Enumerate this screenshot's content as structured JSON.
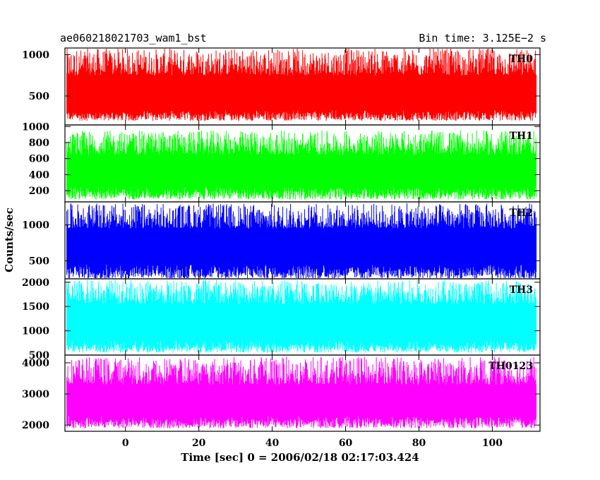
{
  "header": {
    "title_left": "ae060218021703_wam1_bst",
    "title_right": "Bin time: 3.125E−2 s"
  },
  "axes": {
    "ylabel": "Counts/sec",
    "xlabel": "Time [sec] 0 = 2006/02/18 02:17:03.424"
  },
  "colors": {
    "TH0": "#ff0000",
    "TH1": "#00ff00",
    "TH2": "#0000ff",
    "TH3": "#00ffff",
    "TH0123": "#ff00ff"
  },
  "chart_data": {
    "type": "line",
    "bin_time_s": 0.03125,
    "x_range": [
      -16.5,
      113
    ],
    "x_start": -16,
    "x_end": 112,
    "x_ticks": [
      0,
      20,
      40,
      60,
      80,
      100
    ],
    "grid": false,
    "panels": [
      {
        "name": "TH0",
        "ylim": [
          150,
          1080
        ],
        "y_ticks": [
          500,
          1000
        ],
        "mean": 530,
        "low_envelope": [
          200,
          330
        ],
        "high_envelope": [
          750,
          1080
        ],
        "color": "#ff0000"
      },
      {
        "name": "TH1",
        "ylim": [
          60,
          1020
        ],
        "y_ticks": [
          200,
          400,
          600,
          800,
          1000
        ],
        "mean": 440,
        "low_envelope": [
          90,
          250
        ],
        "high_envelope": [
          650,
          950
        ],
        "color": "#00ff00"
      },
      {
        "name": "TH2",
        "ylim": [
          250,
          1320
        ],
        "y_ticks": [
          500,
          1000
        ],
        "mean": 680,
        "low_envelope": [
          250,
          450
        ],
        "high_envelope": [
          950,
          1300
        ],
        "color": "#0000ff"
      },
      {
        "name": "TH3",
        "ylim": [
          500,
          2070
        ],
        "y_ticks": [
          500,
          1000,
          1500,
          2000
        ],
        "mean": 1100,
        "low_envelope": [
          550,
          800
        ],
        "high_envelope": [
          1550,
          2050
        ],
        "color": "#00ffff"
      },
      {
        "name": "TH0123",
        "ylim": [
          1800,
          4250
        ],
        "y_ticks": [
          2000,
          3000,
          4000
        ],
        "mean": 2800,
        "low_envelope": [
          1900,
          2300
        ],
        "high_envelope": [
          3300,
          4200
        ],
        "color": "#ff00ff"
      }
    ]
  }
}
